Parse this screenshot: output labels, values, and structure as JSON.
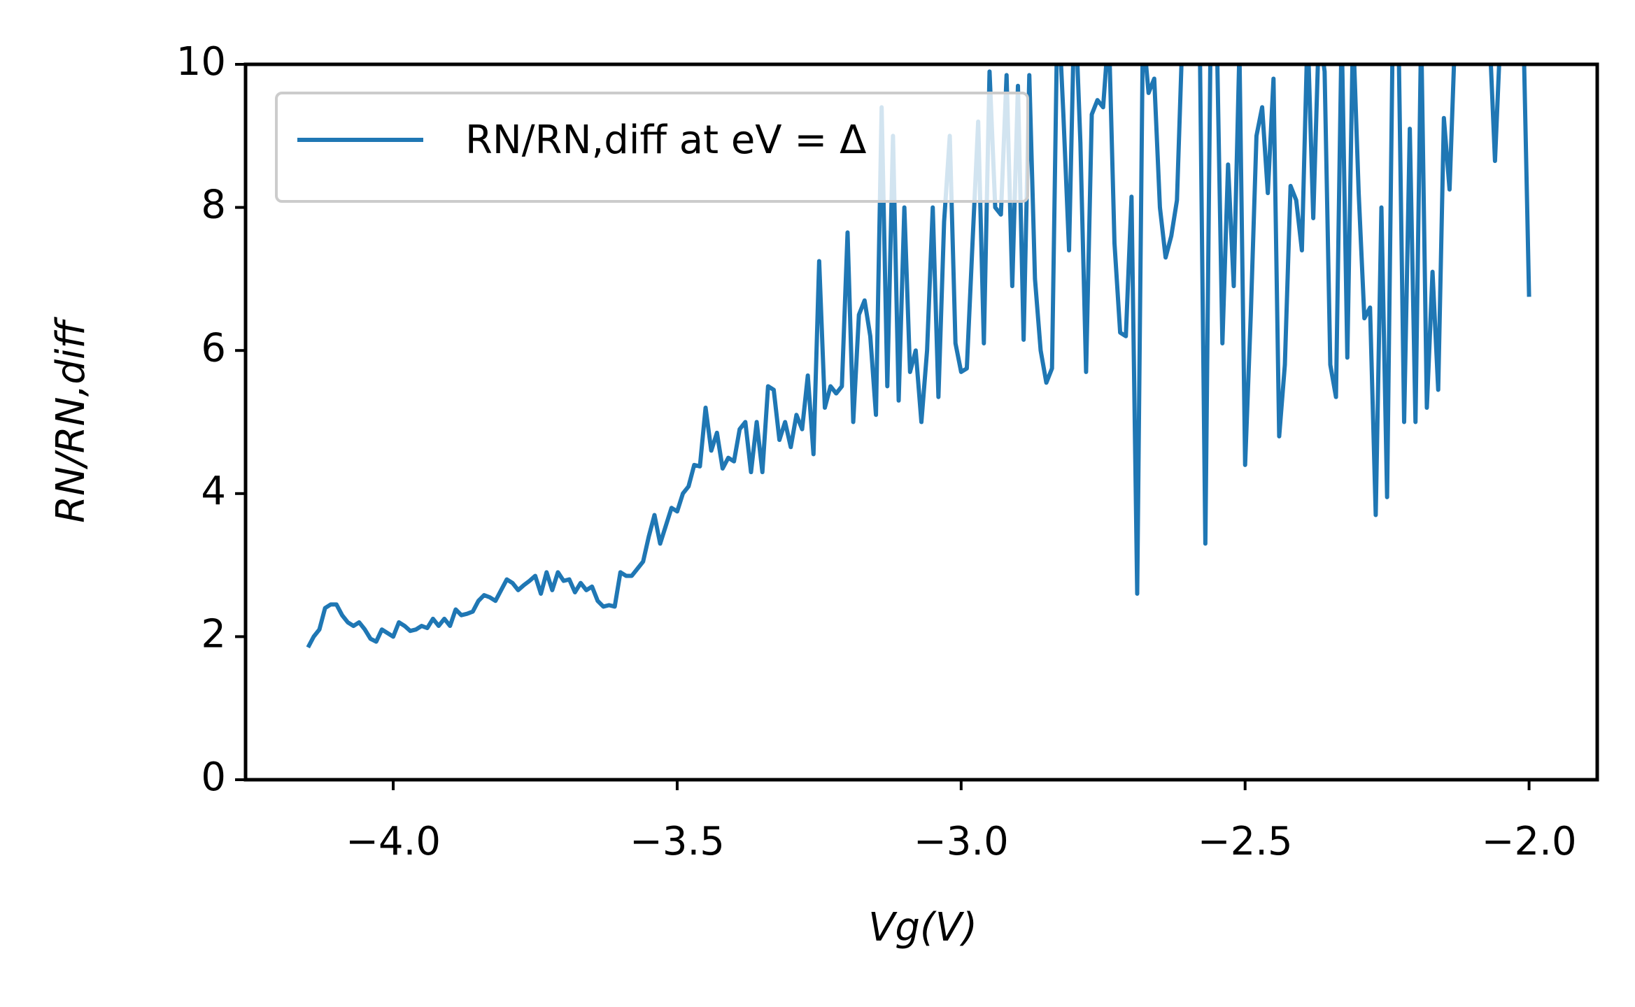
{
  "chart_data": {
    "type": "line",
    "xlabel": "Vg(V)",
    "ylabel": "RN/RN,diff",
    "xlim": [
      -4.26,
      -1.88
    ],
    "ylim": [
      0,
      10
    ],
    "xticks": [
      {
        "value": -4.0,
        "label": "−4.0"
      },
      {
        "value": -3.5,
        "label": "−3.5"
      },
      {
        "value": -3.0,
        "label": "−3.0"
      },
      {
        "value": -2.5,
        "label": "−2.5"
      },
      {
        "value": -2.0,
        "label": "−2.0"
      }
    ],
    "yticks": [
      0,
      2,
      4,
      6,
      8,
      10
    ],
    "legend": "upper left",
    "x": [
      -4.15,
      -4.14,
      -4.13,
      -4.12,
      -4.11,
      -4.1,
      -4.09,
      -4.08,
      -4.07,
      -4.06,
      -4.05,
      -4.04,
      -4.03,
      -4.02,
      -4.01,
      -4.0,
      -3.99,
      -3.98,
      -3.97,
      -3.96,
      -3.95,
      -3.94,
      -3.93,
      -3.92,
      -3.91,
      -3.9,
      -3.89,
      -3.88,
      -3.87,
      -3.86,
      -3.85,
      -3.84,
      -3.83,
      -3.82,
      -3.81,
      -3.8,
      -3.79,
      -3.78,
      -3.77,
      -3.76,
      -3.75,
      -3.74,
      -3.73,
      -3.72,
      -3.71,
      -3.7,
      -3.69,
      -3.68,
      -3.67,
      -3.66,
      -3.65,
      -3.64,
      -3.63,
      -3.62,
      -3.61,
      -3.6,
      -3.59,
      -3.58,
      -3.57,
      -3.56,
      -3.55,
      -3.54,
      -3.53,
      -3.52,
      -3.51,
      -3.5,
      -3.49,
      -3.48,
      -3.47,
      -3.46,
      -3.45,
      -3.44,
      -3.43,
      -3.42,
      -3.41,
      -3.4,
      -3.39,
      -3.38,
      -3.37,
      -3.36,
      -3.35,
      -3.34,
      -3.33,
      -3.32,
      -3.31,
      -3.3,
      -3.29,
      -3.28,
      -3.27,
      -3.26,
      -3.25,
      -3.24,
      -3.23,
      -3.22,
      -3.21,
      -3.2,
      -3.19,
      -3.18,
      -3.17,
      -3.16,
      -3.15,
      -3.14,
      -3.13,
      -3.12,
      -3.11,
      -3.1,
      -3.09,
      -3.08,
      -3.07,
      -3.06,
      -3.05,
      -3.04,
      -3.03,
      -3.02,
      -3.01,
      -3.0,
      -2.99,
      -2.98,
      -2.97,
      -2.96,
      -2.95,
      -2.94,
      -2.93,
      -2.92,
      -2.91,
      -2.9,
      -2.89,
      -2.88,
      -2.87,
      -2.86,
      -2.85,
      -2.84,
      -2.83,
      -2.82,
      -2.81,
      -2.8,
      -2.79,
      -2.78,
      -2.77,
      -2.76,
      -2.75,
      -2.74,
      -2.73,
      -2.72,
      -2.71,
      -2.7,
      -2.69,
      -2.68,
      -2.67,
      -2.66,
      -2.65,
      -2.64,
      -2.63,
      -2.62,
      -2.61,
      -2.6,
      -2.59,
      -2.58,
      -2.57,
      -2.56,
      -2.55,
      -2.54,
      -2.53,
      -2.52,
      -2.51,
      -2.5,
      -2.49,
      -2.48,
      -2.47,
      -2.46,
      -2.45,
      -2.44,
      -2.43,
      -2.42,
      -2.41,
      -2.4,
      -2.39,
      -2.38,
      -2.37,
      -2.36,
      -2.35,
      -2.34,
      -2.33,
      -2.32,
      -2.31,
      -2.3,
      -2.29,
      -2.28,
      -2.27,
      -2.26,
      -2.25,
      -2.24,
      -2.23,
      -2.22,
      -2.21,
      -2.2,
      -2.19,
      -2.18,
      -2.17,
      -2.16,
      -2.15,
      -2.14,
      -2.13,
      -2.12,
      -2.11,
      -2.1,
      -2.09,
      -2.08,
      -2.07,
      -2.06,
      -2.05,
      -2.04,
      -2.03,
      -2.02,
      -2.01,
      -2.0
    ],
    "series": [
      {
        "name": "RN/RN,diff at eV = Δ",
        "color": "#1f77b4",
        "values": [
          1.85,
          2.0,
          2.1,
          2.4,
          2.45,
          2.45,
          2.3,
          2.2,
          2.15,
          2.2,
          2.1,
          1.97,
          1.93,
          2.1,
          2.05,
          2.0,
          2.2,
          2.15,
          2.08,
          2.1,
          2.15,
          2.12,
          2.25,
          2.15,
          2.25,
          2.15,
          2.38,
          2.3,
          2.32,
          2.35,
          2.5,
          2.58,
          2.55,
          2.5,
          2.65,
          2.8,
          2.75,
          2.65,
          2.72,
          2.78,
          2.85,
          2.6,
          2.9,
          2.65,
          2.9,
          2.78,
          2.8,
          2.62,
          2.75,
          2.65,
          2.7,
          2.5,
          2.42,
          2.44,
          2.42,
          2.9,
          2.85,
          2.85,
          2.95,
          3.05,
          3.4,
          3.7,
          3.3,
          3.55,
          3.8,
          3.75,
          4.0,
          4.1,
          4.4,
          4.38,
          5.2,
          4.6,
          4.85,
          4.35,
          4.5,
          4.45,
          4.9,
          5.0,
          4.3,
          5.0,
          4.3,
          5.5,
          5.45,
          4.75,
          5.0,
          4.65,
          5.1,
          4.9,
          5.65,
          4.55,
          7.25,
          5.2,
          5.5,
          5.4,
          5.5,
          7.65,
          5.0,
          6.5,
          6.7,
          6.2,
          5.1,
          9.4,
          5.5,
          9.0,
          5.3,
          8.0,
          5.7,
          6.0,
          5.0,
          6.0,
          8.0,
          5.35,
          7.8,
          9.0,
          6.1,
          5.7,
          5.75,
          7.5,
          9.2,
          6.1,
          9.9,
          8.0,
          7.9,
          9.85,
          6.9,
          9.7,
          6.15,
          9.85,
          7.0,
          6.0,
          5.55,
          5.75,
          11,
          9.3,
          7.4,
          11,
          8.9,
          5.7,
          9.3,
          9.5,
          9.4,
          10.5,
          7.5,
          6.25,
          6.2,
          8.15,
          2.6,
          10.5,
          9.6,
          9.8,
          8.0,
          7.3,
          7.6,
          8.1,
          10.5,
          11,
          10.5,
          10.5,
          3.3,
          11,
          10.5,
          6.1,
          8.6,
          6.9,
          10.2,
          4.4,
          6.5,
          9.0,
          9.4,
          8.2,
          9.8,
          4.8,
          5.8,
          8.3,
          8.1,
          7.4,
          10.5,
          7.85,
          10.5,
          9.9,
          5.8,
          5.35,
          10.5,
          5.9,
          10.5,
          8.2,
          6.45,
          6.6,
          3.7,
          8.0,
          3.95,
          10.5,
          10.5,
          5.0,
          9.1,
          5.0,
          10.5,
          5.2,
          7.1,
          5.45,
          9.25,
          8.25,
          10.5,
          11,
          10.5,
          10.5,
          10.5,
          10.5,
          10.5,
          8.65,
          10.5,
          10.5,
          10.5,
          10.5,
          10.5,
          6.75
        ]
      }
    ]
  }
}
